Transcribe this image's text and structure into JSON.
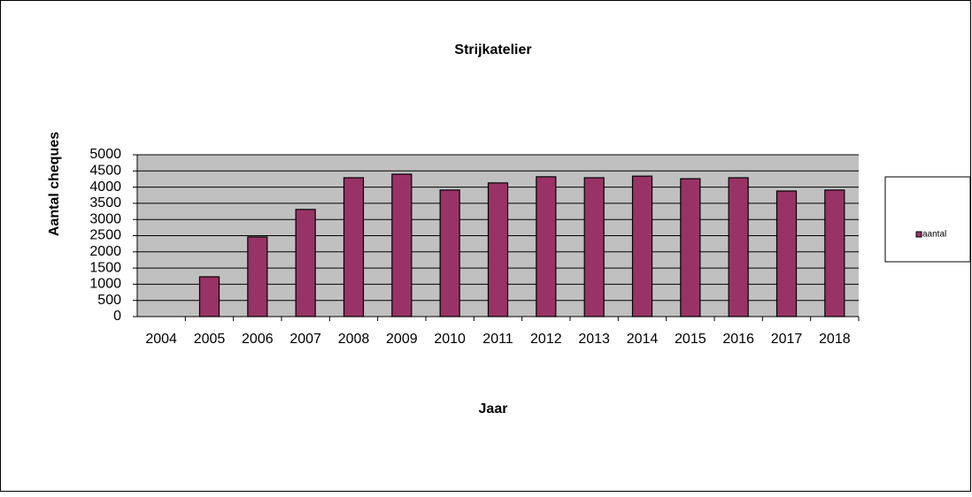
{
  "chart_data": {
    "type": "bar",
    "title": "Strijkatelier",
    "x_label": "Jaar",
    "y_label": "Aantal cheques",
    "categories": [
      "2004",
      "2005",
      "2006",
      "2007",
      "2008",
      "2009",
      "2010",
      "2011",
      "2012",
      "2013",
      "2014",
      "2015",
      "2016",
      "2017",
      "2018"
    ],
    "series": [
      {
        "name": "aantal",
        "color": "#993366",
        "values": [
          0,
          1230,
          2460,
          3310,
          4290,
          4400,
          3910,
          4130,
          4320,
          4290,
          4340,
          4260,
          4290,
          3880,
          3910
        ]
      }
    ],
    "ylim": [
      0,
      5000
    ],
    "yticks": [
      0,
      500,
      1000,
      1500,
      2000,
      2500,
      3000,
      3500,
      4000,
      4500,
      5000
    ],
    "grid": true,
    "legend": "right"
  }
}
